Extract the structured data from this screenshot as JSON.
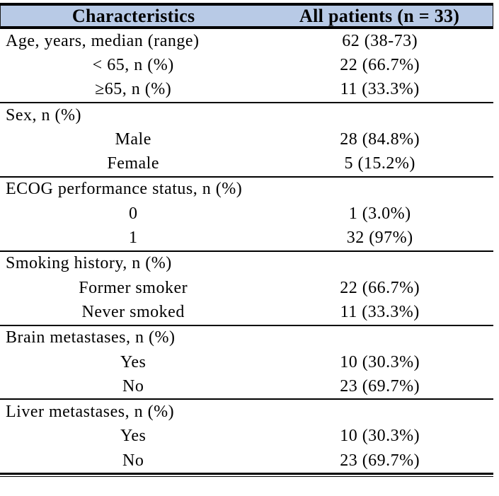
{
  "table": {
    "title_semantics": "Patient baseline characteristics table",
    "colors": {
      "header_background": "#b8cae6",
      "border": "#000000",
      "text": "#000000"
    },
    "header": {
      "characteristics_label": "Characteristics",
      "all_patients_label": "All patients (n = 33)"
    },
    "sections": [
      {
        "rows": [
          {
            "label": "Age, years, median (range)",
            "value": "62 (38-73)",
            "indent": false
          },
          {
            "label": "< 65, n (%)",
            "value": "22 (66.7%)",
            "indent": true
          },
          {
            "label": "≥65, n (%)",
            "value": "11 (33.3%)",
            "indent": true
          }
        ]
      },
      {
        "rows": [
          {
            "label": "Sex, n (%)",
            "value": "",
            "indent": false
          },
          {
            "label": "Male",
            "value": "28 (84.8%)",
            "indent": true
          },
          {
            "label": "Female",
            "value": "5 (15.2%)",
            "indent": true
          }
        ]
      },
      {
        "rows": [
          {
            "label": "ECOG performance status, n (%)",
            "value": "",
            "indent": false
          },
          {
            "label": "0",
            "value": "1 (3.0%)",
            "indent": true
          },
          {
            "label": "1",
            "value": "32 (97%)",
            "indent": true
          }
        ]
      },
      {
        "rows": [
          {
            "label": "Smoking history, n (%)",
            "value": "",
            "indent": false
          },
          {
            "label": "Former smoker",
            "value": "22 (66.7%)",
            "indent": true
          },
          {
            "label": "Never smoked",
            "value": "11 (33.3%)",
            "indent": true
          }
        ]
      },
      {
        "rows": [
          {
            "label": "Brain metastases, n (%)",
            "value": "",
            "indent": false
          },
          {
            "label": "Yes",
            "value": "10 (30.3%)",
            "indent": true
          },
          {
            "label": "No",
            "value": "23 (69.7%)",
            "indent": true
          }
        ]
      },
      {
        "rows": [
          {
            "label": "Liver metastases, n (%)",
            "value": "",
            "indent": false
          },
          {
            "label": "Yes",
            "value": "10 (30.3%)",
            "indent": true
          },
          {
            "label": "No",
            "value": "23 (69.7%)",
            "indent": true
          }
        ]
      }
    ]
  }
}
